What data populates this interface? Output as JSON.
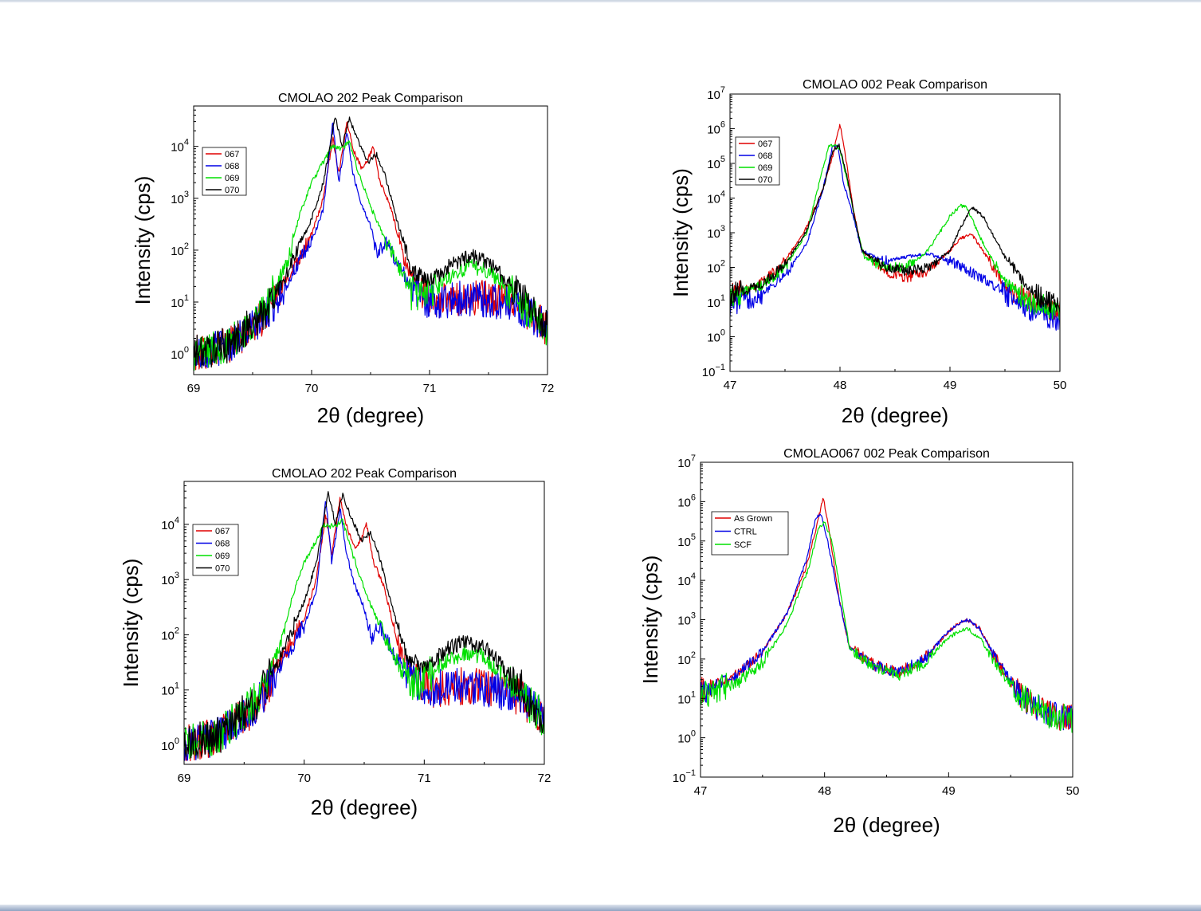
{
  "chart_data": [
    {
      "id": "c1",
      "type": "line",
      "title": "CMOLAO 202 Peak Comparison",
      "xlabel": "2θ (degree)",
      "ylabel": "Intensity (cps)",
      "xlim": [
        69,
        72
      ],
      "ylim": [
        0.4,
        60000
      ],
      "yscale": "log",
      "xticks": [
        69,
        70,
        71,
        72
      ],
      "yticks": [
        {
          "value": 1,
          "base": "10",
          "exp": "0"
        },
        {
          "value": 10,
          "base": "10",
          "exp": "1"
        },
        {
          "value": 100,
          "base": "10",
          "exp": "2"
        },
        {
          "value": 1000,
          "base": "10",
          "exp": "3"
        },
        {
          "value": 10000,
          "base": "10",
          "exp": "4"
        }
      ],
      "legend": {
        "position": "top-left"
      },
      "series": [
        {
          "name": "067",
          "color": "#e00000",
          "x": [
            69.0,
            69.3,
            69.6,
            69.8,
            70.0,
            70.1,
            70.18,
            70.23,
            70.3,
            70.36,
            70.42,
            70.47,
            70.52,
            70.58,
            70.66,
            70.8,
            70.95,
            71.1,
            71.3,
            71.5,
            71.7,
            71.9,
            72.0
          ],
          "y": [
            1,
            1.5,
            5,
            30,
            200,
            1000,
            15000,
            3000,
            30000,
            8000,
            4000,
            5000,
            10000,
            2000,
            800,
            50,
            15,
            10,
            12,
            12,
            10,
            5,
            3
          ]
        },
        {
          "name": "068",
          "color": "#0000e6",
          "x": [
            69.0,
            69.3,
            69.6,
            69.8,
            70.0,
            70.1,
            70.18,
            70.23,
            70.3,
            70.35,
            70.42,
            70.5,
            70.56,
            70.63,
            70.72,
            70.85,
            71.0,
            71.3,
            71.5,
            71.7,
            71.9,
            72.0
          ],
          "y": [
            1,
            1.5,
            5,
            25,
            150,
            600,
            30000,
            2000,
            20000,
            3000,
            800,
            300,
            80,
            150,
            60,
            20,
            10,
            12,
            11,
            9,
            5,
            3
          ]
        },
        {
          "name": "069",
          "color": "#00e000",
          "x": [
            69.0,
            69.3,
            69.6,
            69.8,
            69.9,
            70.0,
            70.1,
            70.17,
            70.25,
            70.32,
            70.4,
            70.5,
            70.6,
            70.72,
            70.85,
            71.0,
            71.2,
            71.35,
            71.5,
            71.7,
            71.9,
            72.0
          ],
          "y": [
            1,
            1.5,
            7,
            60,
            500,
            2000,
            5000,
            10000,
            9000,
            12000,
            3000,
            700,
            200,
            60,
            15,
            15,
            35,
            50,
            40,
            15,
            5,
            3
          ]
        },
        {
          "name": "070",
          "color": "#000000",
          "x": [
            69.0,
            69.3,
            69.6,
            69.8,
            70.0,
            70.1,
            70.2,
            70.26,
            70.32,
            70.4,
            70.48,
            70.55,
            70.62,
            70.72,
            70.85,
            71.0,
            71.2,
            71.35,
            71.5,
            71.7,
            71.9,
            72.0
          ],
          "y": [
            1,
            1.5,
            6,
            40,
            400,
            2000,
            38000,
            10000,
            35000,
            12000,
            5000,
            7000,
            3000,
            400,
            40,
            25,
            55,
            80,
            60,
            20,
            6,
            3
          ]
        }
      ]
    },
    {
      "id": "c2",
      "type": "line",
      "title": "CMOLAO 002 Peak Comparison",
      "xlabel": "2θ (degree)",
      "ylabel": "Intensity (cps)",
      "xlim": [
        47,
        50
      ],
      "ylim": [
        0.1,
        10000000
      ],
      "yscale": "log",
      "xticks": [
        47,
        48,
        49,
        50
      ],
      "yticks": [
        {
          "value": 0.1,
          "base": "10",
          "exp": "−1"
        },
        {
          "value": 1,
          "base": "10",
          "exp": "0"
        },
        {
          "value": 10,
          "base": "10",
          "exp": "1"
        },
        {
          "value": 100,
          "base": "10",
          "exp": "2"
        },
        {
          "value": 1000,
          "base": "10",
          "exp": "3"
        },
        {
          "value": 10000,
          "base": "10",
          "exp": "4"
        },
        {
          "value": 100000,
          "base": "10",
          "exp": "5"
        },
        {
          "value": 1000000,
          "base": "10",
          "exp": "6"
        },
        {
          "value": 10000000,
          "base": "10",
          "exp": "7"
        }
      ],
      "legend": {
        "position": "top-left"
      },
      "series": [
        {
          "name": "067",
          "color": "#e00000",
          "x": [
            47.0,
            47.3,
            47.5,
            47.7,
            47.85,
            47.93,
            48.0,
            48.06,
            48.12,
            48.2,
            48.4,
            48.6,
            48.8,
            49.0,
            49.1,
            49.2,
            49.3,
            49.5,
            49.7,
            50.0
          ],
          "y": [
            15,
            40,
            150,
            1500,
            20000,
            150000,
            1400000,
            100000,
            5000,
            300,
            80,
            50,
            80,
            300,
            700,
            900,
            300,
            30,
            10,
            5
          ]
        },
        {
          "name": "068",
          "color": "#0000e6",
          "x": [
            47.0,
            47.3,
            47.5,
            47.7,
            47.85,
            47.93,
            47.98,
            48.03,
            48.1,
            48.2,
            48.4,
            48.6,
            48.8,
            49.0,
            49.2,
            49.4,
            49.6,
            49.8,
            50.0
          ],
          "y": [
            8,
            20,
            60,
            500,
            20000,
            300000,
            350000,
            30000,
            5000,
            300,
            150,
            200,
            250,
            150,
            70,
            30,
            10,
            5,
            3
          ]
        },
        {
          "name": "069",
          "color": "#00e000",
          "x": [
            47.0,
            47.3,
            47.5,
            47.7,
            47.83,
            47.9,
            47.95,
            48.0,
            48.08,
            48.15,
            48.22,
            48.4,
            48.6,
            48.8,
            49.0,
            49.1,
            49.15,
            49.3,
            49.5,
            49.7,
            50.0
          ],
          "y": [
            15,
            30,
            100,
            1000,
            50000,
            300000,
            350000,
            250000,
            20000,
            1500,
            200,
            100,
            100,
            300,
            3000,
            6000,
            5500,
            500,
            40,
            12,
            5
          ]
        },
        {
          "name": "070",
          "color": "#000000",
          "x": [
            47.0,
            47.3,
            47.5,
            47.7,
            47.85,
            47.93,
            47.99,
            48.06,
            48.13,
            48.2,
            48.4,
            48.6,
            48.8,
            49.0,
            49.1,
            49.2,
            49.3,
            49.5,
            49.7,
            50.0
          ],
          "y": [
            15,
            35,
            120,
            1200,
            20000,
            200000,
            350000,
            50000,
            3000,
            300,
            100,
            80,
            100,
            300,
            1500,
            5500,
            3000,
            200,
            30,
            6
          ]
        }
      ]
    },
    {
      "id": "c3",
      "type": "line",
      "title": "CMOLAO 202 Peak Comparison",
      "xlabel": "2θ (degree)",
      "ylabel": "Intensity (cps)",
      "xlim": [
        69,
        72
      ],
      "ylim": [
        0.45,
        60000
      ],
      "yscale": "log",
      "xticks": [
        69,
        70,
        71,
        72
      ],
      "yticks": [
        {
          "value": 1,
          "base": "10",
          "exp": "0"
        },
        {
          "value": 10,
          "base": "10",
          "exp": "1"
        },
        {
          "value": 100,
          "base": "10",
          "exp": "2"
        },
        {
          "value": 1000,
          "base": "10",
          "exp": "3"
        },
        {
          "value": 10000,
          "base": "10",
          "exp": "4"
        }
      ],
      "legend": {
        "position": "top-left"
      },
      "series": [
        {
          "name": "067",
          "color": "#e00000",
          "x": [
            69.0,
            69.3,
            69.6,
            69.8,
            70.0,
            70.1,
            70.18,
            70.23,
            70.3,
            70.36,
            70.42,
            70.47,
            70.52,
            70.58,
            70.66,
            70.8,
            70.95,
            71.1,
            71.3,
            71.5,
            71.7,
            71.9,
            72.0
          ],
          "y": [
            1,
            1.5,
            5,
            30,
            200,
            1000,
            15000,
            3000,
            30000,
            8000,
            4000,
            5000,
            10000,
            2000,
            800,
            50,
            15,
            10,
            12,
            12,
            10,
            5,
            3
          ]
        },
        {
          "name": "068",
          "color": "#0000e6",
          "x": [
            69.0,
            69.3,
            69.6,
            69.8,
            70.0,
            70.1,
            70.18,
            70.23,
            70.3,
            70.35,
            70.42,
            70.5,
            70.56,
            70.63,
            70.72,
            70.85,
            71.0,
            71.3,
            71.5,
            71.7,
            71.9,
            72.0
          ],
          "y": [
            1,
            1.5,
            5,
            25,
            150,
            600,
            30000,
            2000,
            20000,
            3000,
            800,
            300,
            80,
            150,
            60,
            20,
            10,
            12,
            11,
            9,
            5,
            3
          ]
        },
        {
          "name": "069",
          "color": "#00e000",
          "x": [
            69.0,
            69.3,
            69.6,
            69.8,
            69.9,
            70.0,
            70.1,
            70.17,
            70.25,
            70.32,
            70.4,
            70.5,
            70.6,
            70.72,
            70.85,
            71.0,
            71.2,
            71.35,
            71.5,
            71.7,
            71.9,
            72.0
          ],
          "y": [
            1,
            1.5,
            7,
            60,
            500,
            2000,
            5000,
            10000,
            9000,
            12000,
            3000,
            700,
            200,
            60,
            15,
            15,
            35,
            50,
            40,
            15,
            5,
            3
          ]
        },
        {
          "name": "070",
          "color": "#000000",
          "x": [
            69.0,
            69.3,
            69.6,
            69.8,
            70.0,
            70.1,
            70.2,
            70.26,
            70.32,
            70.4,
            70.48,
            70.55,
            70.62,
            70.72,
            70.85,
            71.0,
            71.2,
            71.35,
            71.5,
            71.7,
            71.9,
            72.0
          ],
          "y": [
            1,
            1.5,
            6,
            40,
            400,
            2000,
            38000,
            10000,
            35000,
            12000,
            5000,
            7000,
            3000,
            400,
            40,
            25,
            55,
            80,
            60,
            20,
            6,
            3
          ]
        }
      ]
    },
    {
      "id": "c4",
      "type": "line",
      "title": "CMOLAO067 002 Peak Comparison",
      "xlabel": "2θ (degree)",
      "ylabel": "Intensity (cps)",
      "xlim": [
        47,
        50
      ],
      "ylim": [
        0.1,
        10000000
      ],
      "yscale": "log",
      "xticks": [
        47,
        48,
        49,
        50
      ],
      "yticks": [
        {
          "value": 0.1,
          "base": "10",
          "exp": "−1"
        },
        {
          "value": 1,
          "base": "10",
          "exp": "0"
        },
        {
          "value": 10,
          "base": "10",
          "exp": "1"
        },
        {
          "value": 100,
          "base": "10",
          "exp": "2"
        },
        {
          "value": 1000,
          "base": "10",
          "exp": "3"
        },
        {
          "value": 10000,
          "base": "10",
          "exp": "4"
        },
        {
          "value": 100000,
          "base": "10",
          "exp": "5"
        },
        {
          "value": 1000000,
          "base": "10",
          "exp": "6"
        },
        {
          "value": 10000000,
          "base": "10",
          "exp": "7"
        }
      ],
      "legend": {
        "position": "top-left"
      },
      "series": [
        {
          "name": "As Grown",
          "color": "#e00000",
          "x": [
            47.0,
            47.3,
            47.5,
            47.7,
            47.85,
            47.93,
            47.99,
            48.05,
            48.12,
            48.2,
            48.4,
            48.6,
            48.8,
            49.0,
            49.1,
            49.15,
            49.25,
            49.4,
            49.6,
            49.8,
            50.0
          ],
          "y": [
            15,
            40,
            150,
            1500,
            20000,
            200000,
            1300000,
            100000,
            3000,
            200,
            70,
            45,
            100,
            500,
            900,
            1000,
            600,
            80,
            10,
            4,
            3
          ]
        },
        {
          "name": "CTRL",
          "color": "#0000e6",
          "x": [
            47.0,
            47.3,
            47.5,
            47.7,
            47.85,
            47.93,
            47.97,
            48.03,
            48.12,
            48.2,
            48.4,
            48.6,
            48.8,
            49.0,
            49.1,
            49.15,
            49.25,
            49.4,
            49.6,
            49.8,
            50.0
          ],
          "y": [
            15,
            40,
            150,
            1500,
            30000,
            400000,
            500000,
            80000,
            3000,
            200,
            70,
            45,
            100,
            500,
            900,
            1000,
            600,
            80,
            10,
            4,
            3
          ]
        },
        {
          "name": "SCF",
          "color": "#00e000",
          "x": [
            47.0,
            47.3,
            47.5,
            47.7,
            47.87,
            47.95,
            48.0,
            48.06,
            48.13,
            48.2,
            48.4,
            48.6,
            48.8,
            49.0,
            49.1,
            49.15,
            49.25,
            49.4,
            49.6,
            49.8,
            50.0
          ],
          "y": [
            12,
            25,
            80,
            800,
            20000,
            200000,
            300000,
            100000,
            5000,
            200,
            60,
            40,
            80,
            350,
            550,
            600,
            350,
            60,
            10,
            4,
            3
          ]
        }
      ]
    }
  ]
}
